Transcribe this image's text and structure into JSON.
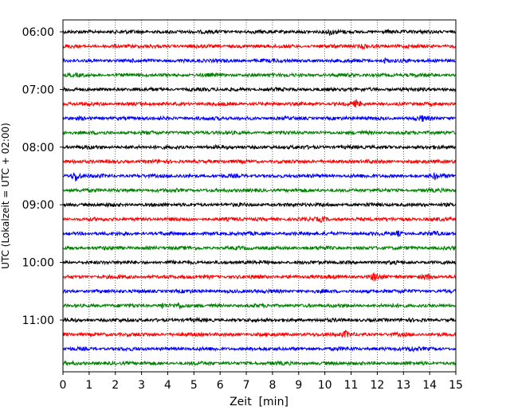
{
  "chart_data": {
    "type": "line",
    "title": "",
    "xlabel": "Zeit  [min]",
    "ylabel": "UTC (Lokalzeit = UTC + 02:00)",
    "xlim": [
      0,
      15
    ],
    "xticks": [
      "0",
      "1",
      "2",
      "3",
      "4",
      "5",
      "6",
      "7",
      "8",
      "9",
      "10",
      "11",
      "12",
      "13",
      "14",
      "15"
    ],
    "grid": {
      "x": "dotted",
      "y": "off"
    },
    "trace_start_minutes_utc": [
      360,
      375,
      390,
      405,
      420,
      435,
      450,
      465,
      480,
      495,
      510,
      525,
      540,
      555,
      570,
      585,
      600,
      615,
      630,
      645,
      660,
      675,
      690,
      705
    ],
    "row_labels": [
      "06:00",
      "",
      "",
      "",
      "07:00",
      "",
      "",
      "",
      "08:00",
      "",
      "",
      "",
      "09:00",
      "",
      "",
      "",
      "10:00",
      "",
      "",
      "",
      "11:00",
      "",
      "",
      ""
    ],
    "trace_colors": [
      "#000000",
      "#ff0000",
      "#0000ff",
      "#008000"
    ],
    "events": [
      {
        "row": 0,
        "minute": 10.2,
        "amplitude": 1.4
      },
      {
        "row": 1,
        "minute": 11.5,
        "amplitude": 1.0
      },
      {
        "row": 2,
        "minute": 12.3,
        "amplitude": 1.1
      },
      {
        "row": 5,
        "minute": 11.2,
        "amplitude": 1.3
      },
      {
        "row": 6,
        "minute": 13.7,
        "amplitude": 1.0
      },
      {
        "row": 10,
        "minute": 0.5,
        "amplitude": 3.0
      },
      {
        "row": 10,
        "minute": 14.2,
        "amplitude": 1.3
      },
      {
        "row": 13,
        "minute": 9.9,
        "amplitude": 1.0
      },
      {
        "row": 14,
        "minute": 12.8,
        "amplitude": 1.0
      },
      {
        "row": 14,
        "minute": 14.2,
        "amplitude": 1.0
      },
      {
        "row": 17,
        "minute": 11.9,
        "amplitude": 2.0
      },
      {
        "row": 17,
        "minute": 13.9,
        "amplitude": 1.4
      },
      {
        "row": 19,
        "minute": 3.8,
        "amplitude": 1.2
      },
      {
        "row": 19,
        "minute": 4.4,
        "amplitude": 1.2
      },
      {
        "row": 21,
        "minute": 10.8,
        "amplitude": 1.5
      },
      {
        "row": 22,
        "minute": 13.3,
        "amplitude": 1.1
      }
    ]
  }
}
